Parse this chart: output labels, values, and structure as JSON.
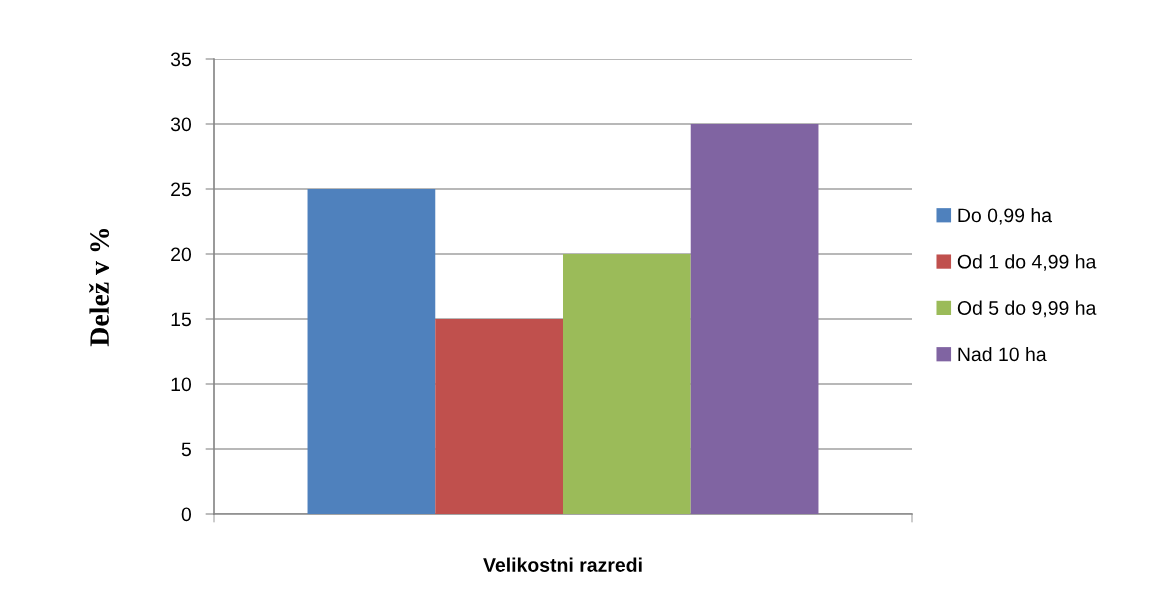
{
  "chart_data": {
    "type": "bar",
    "xlabel": "Velikostni razredi",
    "ylabel": "Delež v %",
    "categories": [
      null
    ],
    "series": [
      {
        "name": "Do 0,99 ha",
        "color": "#4f81bd",
        "values": [
          25
        ]
      },
      {
        "name": "Od 1 do 4,99 ha",
        "color": "#c0504d",
        "values": [
          15
        ]
      },
      {
        "name": "Od 5 do 9,99 ha",
        "color": "#9bbb59",
        "values": [
          20
        ]
      },
      {
        "name": "Nad 10 ha",
        "color": "#8064a2",
        "values": [
          30
        ]
      }
    ],
    "ylim": [
      0,
      35
    ],
    "yticks": [
      0,
      5,
      10,
      15,
      20,
      25,
      30,
      35
    ],
    "grid": "y",
    "legend": "right"
  }
}
